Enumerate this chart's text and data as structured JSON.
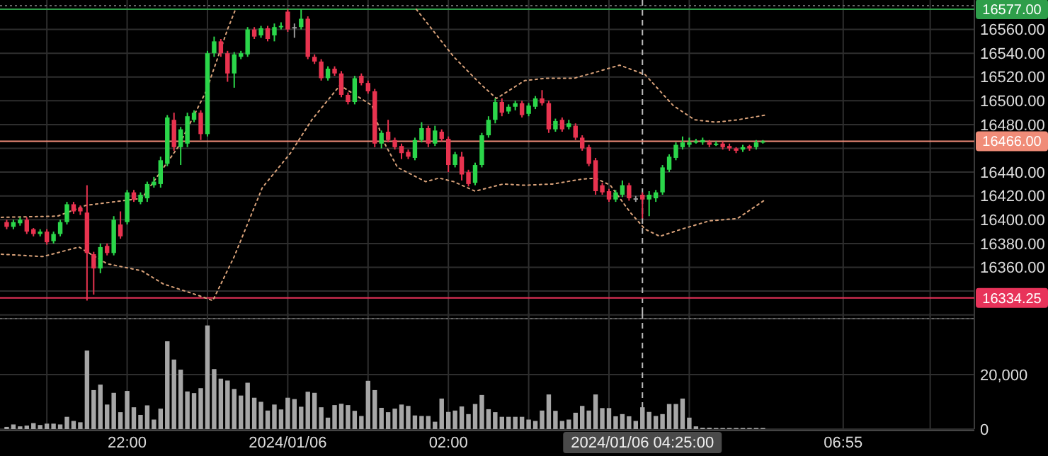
{
  "chart_data": [
    {
      "type": "candlestick",
      "x": [
        "2024-01-05T20:30",
        "2024-01-05T20:35",
        "2024-01-05T20:40",
        "2024-01-05T20:45",
        "2024-01-05T20:50",
        "2024-01-05T20:55",
        "2024-01-05T21:00",
        "2024-01-05T21:05",
        "2024-01-05T21:10",
        "2024-01-05T21:15",
        "2024-01-05T21:20",
        "2024-01-05T21:25",
        "2024-01-05T21:30",
        "2024-01-05T21:35",
        "2024-01-05T21:40",
        "2024-01-05T21:45",
        "2024-01-05T21:50",
        "2024-01-05T21:55",
        "2024-01-05T22:00",
        "2024-01-05T22:05",
        "2024-01-05T22:10",
        "2024-01-05T22:15",
        "2024-01-05T22:20",
        "2024-01-05T22:25",
        "2024-01-05T22:30",
        "2024-01-05T22:35",
        "2024-01-05T22:40",
        "2024-01-05T22:45",
        "2024-01-05T22:50",
        "2024-01-05T22:55",
        "2024-01-05T23:00",
        "2024-01-05T23:05",
        "2024-01-05T23:10",
        "2024-01-05T23:15",
        "2024-01-05T23:20",
        "2024-01-05T23:25",
        "2024-01-05T23:30",
        "2024-01-05T23:35",
        "2024-01-05T23:40",
        "2024-01-05T23:45",
        "2024-01-05T23:50",
        "2024-01-05T23:55",
        "2024-01-06T00:00",
        "2024-01-06T00:05",
        "2024-01-06T00:10",
        "2024-01-06T00:15",
        "2024-01-06T00:20",
        "2024-01-06T00:25",
        "2024-01-06T00:30",
        "2024-01-06T00:35",
        "2024-01-06T00:40",
        "2024-01-06T00:45",
        "2024-01-06T00:50",
        "2024-01-06T00:55",
        "2024-01-06T01:00",
        "2024-01-06T01:05",
        "2024-01-06T01:10",
        "2024-01-06T01:15",
        "2024-01-06T01:20",
        "2024-01-06T01:25",
        "2024-01-06T01:30",
        "2024-01-06T01:35",
        "2024-01-06T01:40",
        "2024-01-06T01:45",
        "2024-01-06T01:50",
        "2024-01-06T01:55",
        "2024-01-06T02:00",
        "2024-01-06T02:05",
        "2024-01-06T02:10",
        "2024-01-06T02:15",
        "2024-01-06T02:20",
        "2024-01-06T02:25",
        "2024-01-06T02:30",
        "2024-01-06T02:35",
        "2024-01-06T02:40",
        "2024-01-06T02:45",
        "2024-01-06T02:50",
        "2024-01-06T02:55",
        "2024-01-06T03:00",
        "2024-01-06T03:05",
        "2024-01-06T03:10",
        "2024-01-06T03:15",
        "2024-01-06T03:20",
        "2024-01-06T03:25",
        "2024-01-06T03:30",
        "2024-01-06T03:35",
        "2024-01-06T03:40",
        "2024-01-06T03:45",
        "2024-01-06T03:50",
        "2024-01-06T03:55",
        "2024-01-06T04:00",
        "2024-01-06T04:05",
        "2024-01-06T04:10",
        "2024-01-06T04:15",
        "2024-01-06T04:20",
        "2024-01-06T04:25",
        "2024-01-06T04:30",
        "2024-01-06T04:35",
        "2024-01-06T04:40",
        "2024-01-06T04:45",
        "2024-01-06T04:50",
        "2024-01-06T04:55",
        "2024-01-06T05:00",
        "2024-01-06T05:05",
        "2024-01-06T05:10",
        "2024-01-06T05:15",
        "2024-01-06T05:20",
        "2024-01-06T05:25",
        "2024-01-06T05:30",
        "2024-01-06T05:35",
        "2024-01-06T05:40",
        "2024-01-06T05:45",
        "2024-01-06T05:50",
        "2024-01-06T05:55"
      ],
      "ohlc": [
        [
          16398,
          16400,
          16392,
          16394
        ],
        [
          16394,
          16400,
          16392,
          16398
        ],
        [
          16397,
          16402,
          16395,
          16400
        ],
        [
          16400,
          16402,
          16388,
          16390
        ],
        [
          16392,
          16393,
          16386,
          16388
        ],
        [
          16388,
          16392,
          16386,
          16390
        ],
        [
          16390,
          16392,
          16379,
          16381
        ],
        [
          16382,
          16390,
          16380,
          16388
        ],
        [
          16388,
          16400,
          16386,
          16398
        ],
        [
          16398,
          16415,
          16396,
          16413
        ],
        [
          16413,
          16415,
          16405,
          16407
        ],
        [
          16410,
          16412,
          16404,
          16407
        ],
        [
          16406,
          16429,
          16332,
          16372
        ],
        [
          16371,
          16373,
          16337,
          16359
        ],
        [
          16359,
          16380,
          16355,
          16377
        ],
        [
          16378,
          16380,
          16370,
          16372
        ],
        [
          16372,
          16403,
          16370,
          16400
        ],
        [
          16396,
          16407,
          16384,
          16386
        ],
        [
          16398,
          16425,
          16396,
          16423
        ],
        [
          16423,
          16425,
          16415,
          16417
        ],
        [
          16415,
          16423,
          16413,
          16421
        ],
        [
          16418,
          16432,
          16415,
          16430
        ],
        [
          16429,
          16436,
          16427,
          16432
        ],
        [
          16430,
          16453,
          16427,
          16450
        ],
        [
          16447,
          16488,
          16445,
          16486
        ],
        [
          16484,
          16490,
          16458,
          16461
        ],
        [
          16461,
          16478,
          16446,
          16476
        ],
        [
          16464,
          16490,
          16461,
          16487
        ],
        [
          16484,
          16492,
          16482,
          16490
        ],
        [
          16490,
          16492,
          16467,
          16472
        ],
        [
          16472,
          16542,
          16470,
          16540
        ],
        [
          16540,
          16554,
          16537,
          16550
        ],
        [
          16550,
          16552,
          16537,
          16540
        ],
        [
          16540,
          16542,
          16516,
          16523
        ],
        [
          16523,
          16541,
          16511,
          16539
        ],
        [
          16537,
          16542,
          16535,
          16540
        ],
        [
          16539,
          16562,
          16537,
          16560
        ],
        [
          16560,
          16562,
          16552,
          16554
        ],
        [
          16555,
          16563,
          16553,
          16561
        ],
        [
          16561,
          16563,
          16550,
          16552
        ],
        [
          16555,
          16565,
          16550,
          16562
        ],
        [
          16562,
          16566,
          16560,
          16563
        ],
        [
          16575,
          16577,
          16558,
          16560
        ],
        [
          16562,
          16565,
          16553,
          16562
        ],
        [
          16562,
          16577,
          16560,
          16569
        ],
        [
          16569,
          16571,
          16535,
          16537
        ],
        [
          16537,
          16539,
          16531,
          16533
        ],
        [
          16533,
          16535,
          16517,
          16519
        ],
        [
          16519,
          16529,
          16517,
          16527
        ],
        [
          16527,
          16529,
          16521,
          16523
        ],
        [
          16523,
          16525,
          16503,
          16505
        ],
        [
          16505,
          16507,
          16497,
          16499
        ],
        [
          16499,
          16521,
          16497,
          16519
        ],
        [
          16521,
          16523,
          16513,
          16515
        ],
        [
          16515,
          16517,
          16506,
          16508
        ],
        [
          16508,
          16510,
          16461,
          16464
        ],
        [
          16464,
          16475,
          16460,
          16473
        ],
        [
          16474,
          16484,
          16465,
          16467
        ],
        [
          16467,
          16469,
          16459,
          16461
        ],
        [
          16462,
          16464,
          16451,
          16456
        ],
        [
          16457,
          16459,
          16451,
          16453
        ],
        [
          16452,
          16469,
          16450,
          16467
        ],
        [
          16467,
          16482,
          16465,
          16477
        ],
        [
          16477,
          16479,
          16461,
          16464
        ],
        [
          16464,
          16479,
          16462,
          16475
        ],
        [
          16474,
          16476,
          16466,
          16468
        ],
        [
          16468,
          16470,
          16440,
          16446
        ],
        [
          16446,
          16457,
          16444,
          16455
        ],
        [
          16453,
          16457,
          16433,
          16438
        ],
        [
          16440,
          16442,
          16428,
          16430
        ],
        [
          16431,
          16448,
          16429,
          16446
        ],
        [
          16446,
          16473,
          16444,
          16471
        ],
        [
          16471,
          16487,
          16469,
          16484
        ],
        [
          16484,
          16502,
          16481,
          16499
        ],
        [
          16499,
          16502,
          16487,
          16490
        ],
        [
          16491,
          16497,
          16489,
          16495
        ],
        [
          16495,
          16500,
          16492,
          16498
        ],
        [
          16498,
          16500,
          16486,
          16488
        ],
        [
          16489,
          16498,
          16487,
          16496
        ],
        [
          16495,
          16504,
          16493,
          16502
        ],
        [
          16502,
          16509,
          16496,
          16498
        ],
        [
          16498,
          16500,
          16473,
          16476
        ],
        [
          16476,
          16485,
          16474,
          16483
        ],
        [
          16484,
          16486,
          16474,
          16476
        ],
        [
          16478,
          16484,
          16476,
          16481
        ],
        [
          16479,
          16481,
          16467,
          16469
        ],
        [
          16469,
          16471,
          16458,
          16460
        ],
        [
          16461,
          16463,
          16445,
          16447
        ],
        [
          16450,
          16452,
          16421,
          16424
        ],
        [
          16429,
          16431,
          16421,
          16423
        ],
        [
          16424,
          16426,
          16415,
          16417
        ],
        [
          16417,
          16425,
          16415,
          16423
        ],
        [
          16421,
          16433,
          16419,
          16429
        ],
        [
          16429,
          16431,
          16416,
          16418
        ],
        [
          16418,
          16420,
          16415,
          16418
        ],
        [
          16421,
          16423,
          16401,
          16417
        ],
        [
          16417,
          16424,
          16403,
          16421
        ],
        [
          16418,
          16425,
          16415,
          16423
        ],
        [
          16423,
          16446,
          16421,
          16444
        ],
        [
          16442,
          16455,
          16440,
          16453
        ],
        [
          16452,
          16465,
          16450,
          16463
        ],
        [
          16461,
          16470,
          16459,
          16465
        ],
        [
          16463,
          16469,
          16461,
          16465
        ],
        [
          16465,
          16468,
          16464,
          16466
        ],
        [
          16465,
          16469,
          16463,
          16467
        ],
        [
          16465,
          16467,
          16461,
          16463
        ],
        [
          16463,
          16466,
          16462,
          16464
        ],
        [
          16464,
          16466,
          16459,
          16461
        ],
        [
          16462,
          16464,
          16458,
          16460
        ],
        [
          16460,
          16461,
          16456,
          16458
        ],
        [
          16459,
          16463,
          16457,
          16461
        ],
        [
          16462,
          16463,
          16458,
          16460
        ],
        [
          16461,
          16467,
          16459,
          16465
        ],
        [
          16465,
          16467,
          16464,
          16466
        ]
      ],
      "colors": [
        "#e8334f",
        "#2bd64a",
        "#2bd64a",
        "#e8334f",
        "#e8334f",
        "#2bd64a",
        "#e8334f",
        "#2bd64a",
        "#2bd64a",
        "#2bd64a",
        "#e8334f",
        "#e8334f",
        "#e8334f",
        "#e8334f",
        "#2bd64a",
        "#e8334f",
        "#2bd64a",
        "#e8334f",
        "#2bd64a",
        "#e8334f",
        "#2bd64a",
        "#2bd64a",
        "#2bd64a",
        "#2bd64a",
        "#2bd64a",
        "#e8334f",
        "#2bd64a",
        "#2bd64a",
        "#2bd64a",
        "#e8334f",
        "#2bd64a",
        "#2bd64a",
        "#e8334f",
        "#e8334f",
        "#2bd64a",
        "#2bd64a",
        "#2bd64a",
        "#e8334f",
        "#2bd64a",
        "#e8334f",
        "#2bd64a",
        "#2bd64a",
        "#e8334f",
        "#9a9a9a",
        "#2bd64a",
        "#e8334f",
        "#e8334f",
        "#e8334f",
        "#2bd64a",
        "#e8334f",
        "#e8334f",
        "#e8334f",
        "#2bd64a",
        "#e8334f",
        "#e8334f",
        "#e8334f",
        "#2bd64a",
        "#e8334f",
        "#e8334f",
        "#e8334f",
        "#e8334f",
        "#2bd64a",
        "#2bd64a",
        "#e8334f",
        "#2bd64a",
        "#e8334f",
        "#e8334f",
        "#2bd64a",
        "#e8334f",
        "#e8334f",
        "#2bd64a",
        "#2bd64a",
        "#2bd64a",
        "#2bd64a",
        "#e8334f",
        "#2bd64a",
        "#2bd64a",
        "#e8334f",
        "#2bd64a",
        "#2bd64a",
        "#e8334f",
        "#e8334f",
        "#2bd64a",
        "#e8334f",
        "#2bd64a",
        "#e8334f",
        "#e8334f",
        "#e8334f",
        "#e8334f",
        "#e8334f",
        "#e8334f",
        "#2bd64a",
        "#2bd64a",
        "#e8334f",
        "#9a9a9a",
        "#e8334f",
        "#2bd64a",
        "#2bd64a",
        "#2bd64a",
        "#2bd64a",
        "#2bd64a",
        "#2bd64a",
        "#2bd64a",
        "#2bd64a",
        "#2bd64a",
        "#e8334f",
        "#2bd64a",
        "#e8334f",
        "#e8334f",
        "#e8334f",
        "#2bd64a",
        "#e8334f",
        "#2bd64a",
        "#2bd64a"
      ],
      "series": [
        {
          "type": "line",
          "color": "#d9a27a",
          "x": [
            "2024-01-05T20:26",
            "2024-01-05T21:08",
            "2024-01-05T21:29",
            "2024-01-05T22:11",
            "2024-01-05T22:38",
            "2024-01-05T22:59",
            "2024-01-05T23:15",
            "2024-01-05T23:21",
            "2024-01-06T00:30",
            "2024-01-06T01:36",
            "2024-01-06T02:04",
            "2024-01-06T02:25",
            "2024-01-06T02:36",
            "2024-01-06T02:57",
            "2024-01-06T03:13",
            "2024-01-06T03:34",
            "2024-01-06T03:50",
            "2024-01-06T04:08",
            "2024-01-06T04:27",
            "2024-01-06T04:48",
            "2024-01-06T05:04",
            "2024-01-06T05:20",
            "2024-01-06T05:36",
            "2024-01-06T05:57"
          ],
          "values": [
            16402,
            16403,
            16412,
            16418,
            16461,
            16508,
            16560,
            16577,
            null,
            16577,
            16537,
            16513,
            16502,
            16517,
            16519,
            16519,
            16524,
            16530,
            16522,
            16496,
            16484,
            16482,
            16484,
            16488
          ]
        },
        {
          "type": "line",
          "color": "#d9a27a",
          "x": [
            "2024-01-05T20:26",
            "2024-01-05T20:57",
            "2024-01-05T21:24",
            "2024-01-05T21:45",
            "2024-01-05T22:11",
            "2024-01-05T22:27",
            "2024-01-05T22:54",
            "2024-01-05T23:04",
            "2024-01-05T23:20",
            "2024-01-05T23:41",
            "2024-01-06T00:02",
            "2024-01-06T00:18",
            "2024-01-06T00:39",
            "2024-01-06T01:03",
            "2024-01-06T01:11",
            "2024-01-06T01:22",
            "2024-01-06T01:43",
            "2024-01-06T01:53",
            "2024-01-06T02:04",
            "2024-01-06T02:20",
            "2024-01-06T02:41",
            "2024-01-06T02:57",
            "2024-01-06T03:18",
            "2024-01-06T03:39",
            "2024-01-06T03:50",
            "2024-01-06T04:01",
            "2024-01-06T04:16",
            "2024-01-06T04:27",
            "2024-01-06T04:38",
            "2024-01-06T04:54",
            "2024-01-06T05:15",
            "2024-01-06T05:36",
            "2024-01-06T05:57"
          ],
          "values": [
            16371,
            16369,
            16377,
            16363,
            16357,
            16346,
            16336,
            16332,
            16369,
            16427,
            16456,
            16484,
            16513,
            16496,
            16467,
            16444,
            16432,
            16435,
            16432,
            16424,
            16430,
            16429,
            16430,
            16434,
            16435,
            16429,
            16406,
            16392,
            16386,
            16392,
            16399,
            16401,
            16417
          ]
        }
      ],
      "line_style": "dotted",
      "xlim": [
        "2024-01-05T20:25",
        "2024-01-06T08:33"
      ],
      "xticks": [
        {
          "value": "2024-01-05T21:00",
          "label": null
        },
        {
          "value": "2024-01-05T22:00",
          "label": null
        },
        {
          "value": "2024-01-05T23:00",
          "label": null
        },
        {
          "value": "2024-01-06T00:00",
          "label": null
        },
        {
          "value": "2024-01-06T01:00",
          "label": null
        },
        {
          "value": "2024-01-06T02:00",
          "label": null
        },
        {
          "value": "2024-01-06T03:00",
          "label": null
        },
        {
          "value": "2024-01-06T04:00",
          "label": null
        },
        {
          "value": "2024-01-06T05:00",
          "label": null
        },
        {
          "value": "2024-01-06T06:55",
          "label": null
        },
        {
          "value": "2024-01-06T08:00",
          "label": null
        }
      ],
      "ylim": [
        16318,
        16580
      ],
      "yticks": [
        {
          "value": 16320,
          "label": null
        },
        {
          "value": 16340,
          "label": null
        },
        {
          "value": 16360,
          "label": "16360.00"
        },
        {
          "value": 16380,
          "label": "16380.00"
        },
        {
          "value": 16400,
          "label": "16400.00"
        },
        {
          "value": 16420,
          "label": "16420.00"
        },
        {
          "value": 16440,
          "label": "16440.00"
        },
        {
          "value": 16460,
          "label": null
        },
        {
          "value": 16480,
          "label": "16480.00"
        },
        {
          "value": 16500,
          "label": "16500.00"
        },
        {
          "value": 16520,
          "label": "16520.00"
        },
        {
          "value": 16540,
          "label": "16540.00"
        },
        {
          "value": 16560,
          "label": "16560.00"
        }
      ],
      "tick_labels": "y",
      "grid": true,
      "ref_lines": [
        {
          "axis": "y",
          "value": 16577,
          "label": "16577.00",
          "color": "#2e9e4a"
        },
        {
          "axis": "y",
          "value": 16466,
          "label": "16466.00",
          "color": "#f08c78"
        },
        {
          "axis": "y",
          "value": 16334.25,
          "label": "16334.25",
          "color": "#e8335a"
        },
        {
          "axis": "x",
          "value": "2024-01-06T04:25",
          "color": "#bbbbbb",
          "line_style": "dashed"
        }
      ]
    },
    {
      "type": "bar",
      "x": [
        "2024-01-05T20:30",
        "2024-01-05T20:35",
        "2024-01-05T20:40",
        "2024-01-05T20:45",
        "2024-01-05T20:50",
        "2024-01-05T20:55",
        "2024-01-05T21:00",
        "2024-01-05T21:05",
        "2024-01-05T21:10",
        "2024-01-05T21:15",
        "2024-01-05T21:20",
        "2024-01-05T21:25",
        "2024-01-05T21:30",
        "2024-01-05T21:35",
        "2024-01-05T21:40",
        "2024-01-05T21:45",
        "2024-01-05T21:50",
        "2024-01-05T21:55",
        "2024-01-05T22:00",
        "2024-01-05T22:05",
        "2024-01-05T22:10",
        "2024-01-05T22:15",
        "2024-01-05T22:20",
        "2024-01-05T22:25",
        "2024-01-05T22:30",
        "2024-01-05T22:35",
        "2024-01-05T22:40",
        "2024-01-05T22:45",
        "2024-01-05T22:50",
        "2024-01-05T22:55",
        "2024-01-05T23:00",
        "2024-01-05T23:05",
        "2024-01-05T23:10",
        "2024-01-05T23:15",
        "2024-01-05T23:20",
        "2024-01-05T23:25",
        "2024-01-05T23:30",
        "2024-01-05T23:35",
        "2024-01-05T23:40",
        "2024-01-05T23:45",
        "2024-01-05T23:50",
        "2024-01-05T23:55",
        "2024-01-06T00:00",
        "2024-01-06T00:05",
        "2024-01-06T00:10",
        "2024-01-06T00:15",
        "2024-01-06T00:20",
        "2024-01-06T00:25",
        "2024-01-06T00:30",
        "2024-01-06T00:35",
        "2024-01-06T00:40",
        "2024-01-06T00:45",
        "2024-01-06T00:50",
        "2024-01-06T00:55",
        "2024-01-06T01:00",
        "2024-01-06T01:05",
        "2024-01-06T01:10",
        "2024-01-06T01:15",
        "2024-01-06T01:20",
        "2024-01-06T01:25",
        "2024-01-06T01:30",
        "2024-01-06T01:35",
        "2024-01-06T01:40",
        "2024-01-06T01:45",
        "2024-01-06T01:50",
        "2024-01-06T01:55",
        "2024-01-06T02:00",
        "2024-01-06T02:05",
        "2024-01-06T02:10",
        "2024-01-06T02:15",
        "2024-01-06T02:20",
        "2024-01-06T02:25",
        "2024-01-06T02:30",
        "2024-01-06T02:35",
        "2024-01-06T02:40",
        "2024-01-06T02:45",
        "2024-01-06T02:50",
        "2024-01-06T02:55",
        "2024-01-06T03:00",
        "2024-01-06T03:05",
        "2024-01-06T03:10",
        "2024-01-06T03:15",
        "2024-01-06T03:20",
        "2024-01-06T03:25",
        "2024-01-06T03:30",
        "2024-01-06T03:35",
        "2024-01-06T03:40",
        "2024-01-06T03:45",
        "2024-01-06T03:50",
        "2024-01-06T03:55",
        "2024-01-06T04:00",
        "2024-01-06T04:05",
        "2024-01-06T04:10",
        "2024-01-06T04:15",
        "2024-01-06T04:20",
        "2024-01-06T04:25",
        "2024-01-06T04:30",
        "2024-01-06T04:35",
        "2024-01-06T04:40",
        "2024-01-06T04:45",
        "2024-01-06T04:50",
        "2024-01-06T04:55",
        "2024-01-06T05:00",
        "2024-01-06T05:05",
        "2024-01-06T05:10",
        "2024-01-06T05:15",
        "2024-01-06T05:20",
        "2024-01-06T05:25",
        "2024-01-06T05:30",
        "2024-01-06T05:35",
        "2024-01-06T05:40",
        "2024-01-06T05:45",
        "2024-01-06T05:50",
        "2024-01-06T05:55"
      ],
      "values": [
        800,
        1700,
        1000,
        1300,
        2200,
        1500,
        2000,
        2000,
        1700,
        4500,
        3000,
        2500,
        28800,
        14300,
        16300,
        9000,
        13300,
        6200,
        14000,
        8000,
        5200,
        8700,
        3500,
        7500,
        32200,
        25500,
        21800,
        13800,
        13200,
        15000,
        38000,
        22000,
        18500,
        17800,
        14700,
        12300,
        17000,
        11500,
        10000,
        6800,
        9000,
        7200,
        11500,
        11000,
        8200,
        13700,
        13300,
        8000,
        4200,
        8800,
        9300,
        8800,
        6700,
        4800,
        17700,
        14300,
        7800,
        6200,
        7500,
        9000,
        8500,
        5000,
        4800,
        4800,
        2700,
        11200,
        6300,
        6800,
        8300,
        5500,
        9200,
        12500,
        7300,
        6200,
        4500,
        4500,
        4500,
        4500,
        3500,
        3000,
        6800,
        12700,
        6700,
        3000,
        3500,
        6000,
        8500,
        6800,
        12700,
        7700,
        7700,
        4700,
        5500,
        4700,
        3000,
        8000,
        6300,
        4800,
        5500,
        9200,
        9200,
        11200,
        4200,
        1000,
        500,
        500,
        400,
        400,
        400,
        400,
        400,
        400,
        400,
        400
      ],
      "color": "#a6a6a6",
      "xlim": [
        "2024-01-05T20:25",
        "2024-01-06T08:33"
      ],
      "xticks": [
        {
          "value": "2024-01-05T21:00",
          "label": null
        },
        {
          "value": "2024-01-05T22:00",
          "label": "22:00"
        },
        {
          "value": "2024-01-05T23:00",
          "label": null
        },
        {
          "value": "2024-01-06T00:00",
          "label": "2024/01/06"
        },
        {
          "value": "2024-01-06T01:00",
          "label": null
        },
        {
          "value": "2024-01-06T02:00",
          "label": "02:00"
        },
        {
          "value": "2024-01-06T03:00",
          "label": null
        },
        {
          "value": "2024-01-06T04:00",
          "label": null
        },
        {
          "value": "2024-01-06T05:00",
          "label": null
        },
        {
          "value": "2024-01-06T06:55",
          "label": "06:55"
        },
        {
          "value": "2024-01-06T08:00",
          "label": null
        }
      ],
      "ylim": [
        0,
        40500
      ],
      "yticks": [
        0,
        {
          "value": 20000,
          "label": "20,000"
        }
      ],
      "grid": true,
      "ref_lines": [
        {
          "axis": "x",
          "value": "2024-01-06T04:25",
          "label": "2024/01/06 04:25:00",
          "color": "#bbbbbb",
          "line_style": "dashed"
        }
      ]
    }
  ]
}
